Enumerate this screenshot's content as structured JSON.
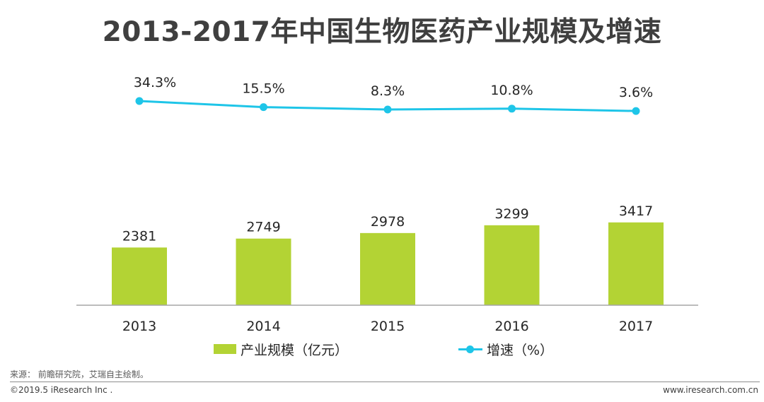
{
  "title": "2013-2017年中国生物医药产业规模及增速",
  "chart_data": {
    "type": "bar+line",
    "title": "2013-2017年中国生物医药产业规模及增速",
    "categories": [
      "2013",
      "2014",
      "2015",
      "2016",
      "2017"
    ],
    "series": [
      {
        "name": "产业规模（亿元）",
        "type": "bar",
        "values": [
          2381,
          2749,
          2978,
          3299,
          3417
        ],
        "labels": [
          "2381",
          "2749",
          "2978",
          "3299",
          "3417"
        ],
        "color": "#b3d334"
      },
      {
        "name": "增速（%）",
        "type": "line",
        "values": [
          34.3,
          15.5,
          8.3,
          10.8,
          3.6
        ],
        "labels": [
          "34.3%",
          "15.5%",
          "8.3%",
          "10.8%",
          "3.6%"
        ],
        "color": "#1ec5e8"
      }
    ],
    "legend_position": "bottom",
    "grid": false
  },
  "legend": {
    "bar_label": "产业规模（亿元）",
    "line_label": "增速（%）"
  },
  "source": "来源： 前瞻研究院，艾瑞自主绘制。",
  "footer": {
    "copyright": "©2019.5 iResearch Inc .",
    "website": "www.iresearch.com.cn"
  }
}
